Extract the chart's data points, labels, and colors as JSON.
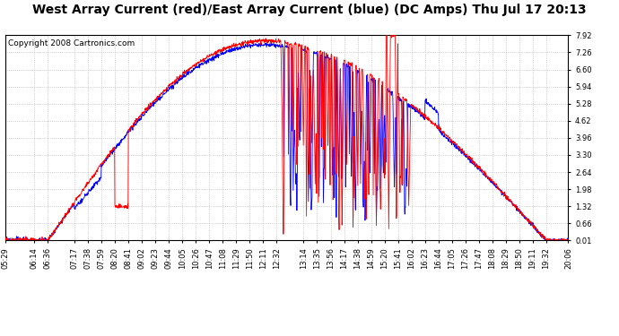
{
  "title": "West Array Current (red)/East Array Current (blue) (DC Amps) Thu Jul 17 20:13",
  "copyright": "Copyright 2008 Cartronics.com",
  "bg_color": "#ffffff",
  "plot_bg_color": "#ffffff",
  "grid_color": "#aaaaaa",
  "line_red": "red",
  "line_blue": "blue",
  "ymin": 0.01,
  "ymax": 7.92,
  "yticks": [
    0.01,
    0.66,
    1.32,
    1.98,
    2.64,
    3.3,
    3.96,
    4.62,
    5.28,
    5.94,
    6.6,
    7.26,
    7.92
  ],
  "xtick_labels": [
    "05:29",
    "06:14",
    "06:36",
    "07:17",
    "07:38",
    "07:59",
    "08:20",
    "08:41",
    "09:02",
    "09:23",
    "09:44",
    "10:05",
    "10:26",
    "10:47",
    "11:08",
    "11:29",
    "11:50",
    "12:11",
    "12:32",
    "13:14",
    "13:35",
    "13:56",
    "14:17",
    "14:38",
    "14:59",
    "15:20",
    "15:41",
    "16:02",
    "16:23",
    "16:44",
    "17:05",
    "17:26",
    "17:47",
    "18:08",
    "18:29",
    "18:50",
    "19:11",
    "19:32",
    "20:06"
  ],
  "title_fontsize": 10,
  "tick_fontsize": 6,
  "copyright_fontsize": 6.5
}
